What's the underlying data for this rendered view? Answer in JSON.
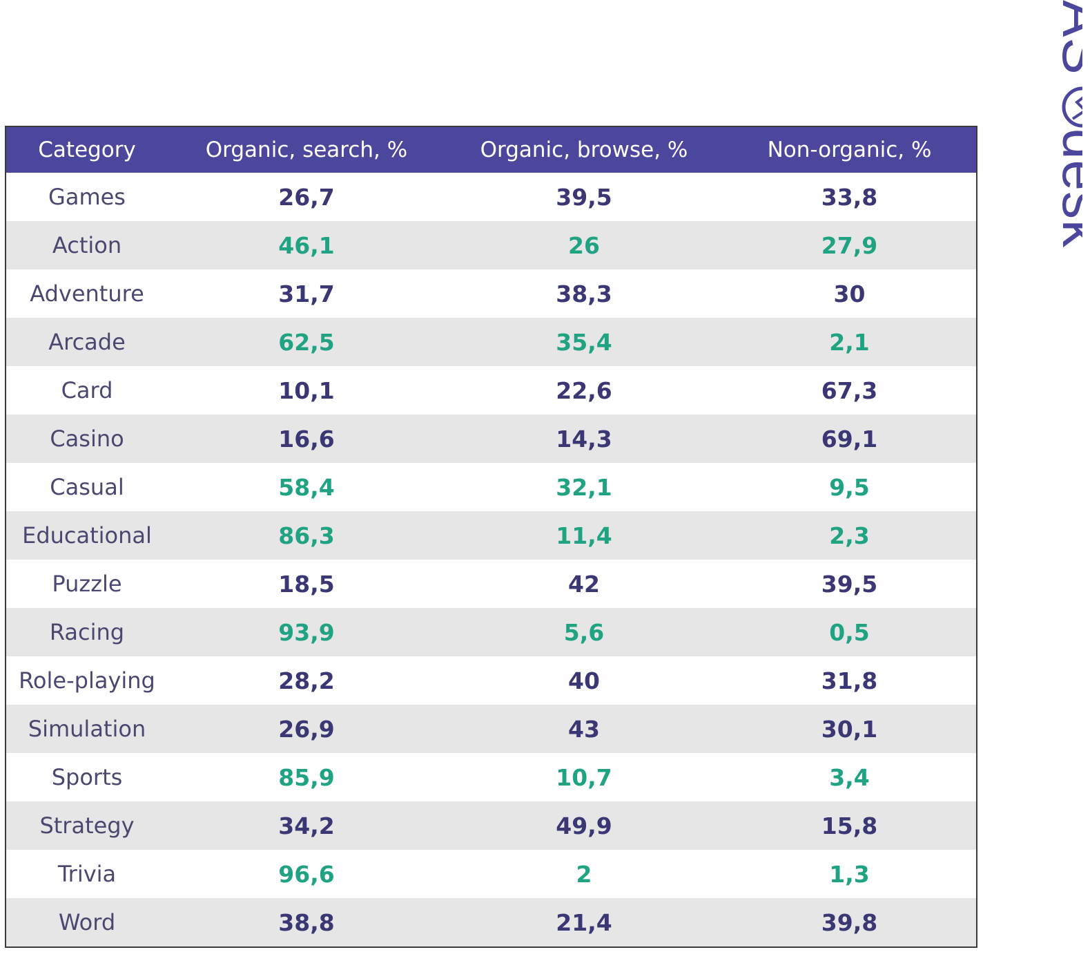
{
  "brand": {
    "logo_text": "ASOdesk",
    "header_color": "#4b479c",
    "highlight_color": "#1fa383",
    "text_color": "#3a3775"
  },
  "chart_data": {
    "type": "table",
    "columns": [
      "Category",
      "Organic, search, %",
      "Organic, browse, %",
      "Non-organic, %"
    ],
    "rows": [
      {
        "category": "Games",
        "search": "26,7",
        "browse": "39,5",
        "non_organic": "33,8",
        "highlight": false
      },
      {
        "category": "Action",
        "search": "46,1",
        "browse": "26",
        "non_organic": "27,9",
        "highlight": true
      },
      {
        "category": "Adventure",
        "search": "31,7",
        "browse": "38,3",
        "non_organic": "30",
        "highlight": false
      },
      {
        "category": "Arcade",
        "search": "62,5",
        "browse": "35,4",
        "non_organic": "2,1",
        "highlight": true
      },
      {
        "category": "Card",
        "search": "10,1",
        "browse": "22,6",
        "non_organic": "67,3",
        "highlight": false
      },
      {
        "category": "Casino",
        "search": "16,6",
        "browse": "14,3",
        "non_organic": "69,1",
        "highlight": false
      },
      {
        "category": "Casual",
        "search": "58,4",
        "browse": "32,1",
        "non_organic": "9,5",
        "highlight": true
      },
      {
        "category": "Educational",
        "search": "86,3",
        "browse": "11,4",
        "non_organic": "2,3",
        "highlight": true
      },
      {
        "category": "Puzzle",
        "search": "18,5",
        "browse": "42",
        "non_organic": "39,5",
        "highlight": false
      },
      {
        "category": "Racing",
        "search": "93,9",
        "browse": "5,6",
        "non_organic": "0,5",
        "highlight": true
      },
      {
        "category": "Role-playing",
        "search": "28,2",
        "browse": "40",
        "non_organic": "31,8",
        "highlight": false
      },
      {
        "category": "Simulation",
        "search": "26,9",
        "browse": "43",
        "non_organic": "30,1",
        "highlight": false
      },
      {
        "category": "Sports",
        "search": "85,9",
        "browse": "10,7",
        "non_organic": "3,4",
        "highlight": true
      },
      {
        "category": "Strategy",
        "search": "34,2",
        "browse": "49,9",
        "non_organic": "15,8",
        "highlight": false
      },
      {
        "category": "Trivia",
        "search": "96,6",
        "browse": "2",
        "non_organic": "1,3",
        "highlight": true
      },
      {
        "category": "Word",
        "search": "38,8",
        "browse": "21,4",
        "non_organic": "39,8",
        "highlight": false
      }
    ]
  }
}
